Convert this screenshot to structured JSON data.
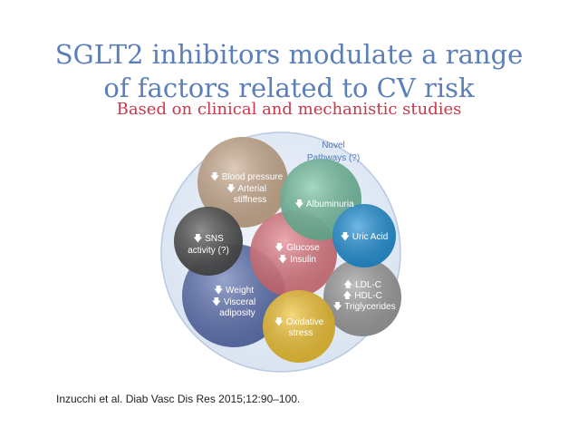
{
  "slide": {
    "title_line1": "SGLT2 inhibitors modulate a range",
    "title_line2": "of factors related to CV risk",
    "subtitle": "Based on clinical and mechanistic studies",
    "citation": "Inzucchi et al. Diab Vasc Dis Res 2015;12:90–100."
  },
  "diagram": {
    "outer_label_line1": "Novel",
    "outer_label_line2": "Pathways (?)",
    "bubbles": {
      "blood_pressure": {
        "line1": "Blood pressure",
        "line2": "Arterial",
        "line3": "stiffness",
        "color": "#c9a98a"
      },
      "albuminuria": {
        "line1": "Albuminuria",
        "color": "#6fbf9e"
      },
      "sns": {
        "line1": "SNS",
        "line2": "activity (?)",
        "color": "#4a4a4a"
      },
      "glucose": {
        "line1": "Glucose",
        "line2": "Insulin",
        "color": "#e0707a"
      },
      "uric_acid": {
        "line1": "Uric Acid",
        "color": "#1f8fd6"
      },
      "weight": {
        "line1": "Weight",
        "line2": "Visceral",
        "line3": "adiposity",
        "color": "#5a6fb0"
      },
      "lipids": {
        "line1": "LDL-C",
        "line2": "HDL-C",
        "line3": "Triglycerides",
        "color": "#9a9a9a"
      },
      "oxidative": {
        "line1": "Oxidative",
        "line2": "stress",
        "color": "#f2c230"
      }
    },
    "colors": {
      "outer_fill": "#e4ecf6",
      "outer_stroke": "#b9c9e0",
      "label_blue": "#4f7ab8"
    }
  }
}
